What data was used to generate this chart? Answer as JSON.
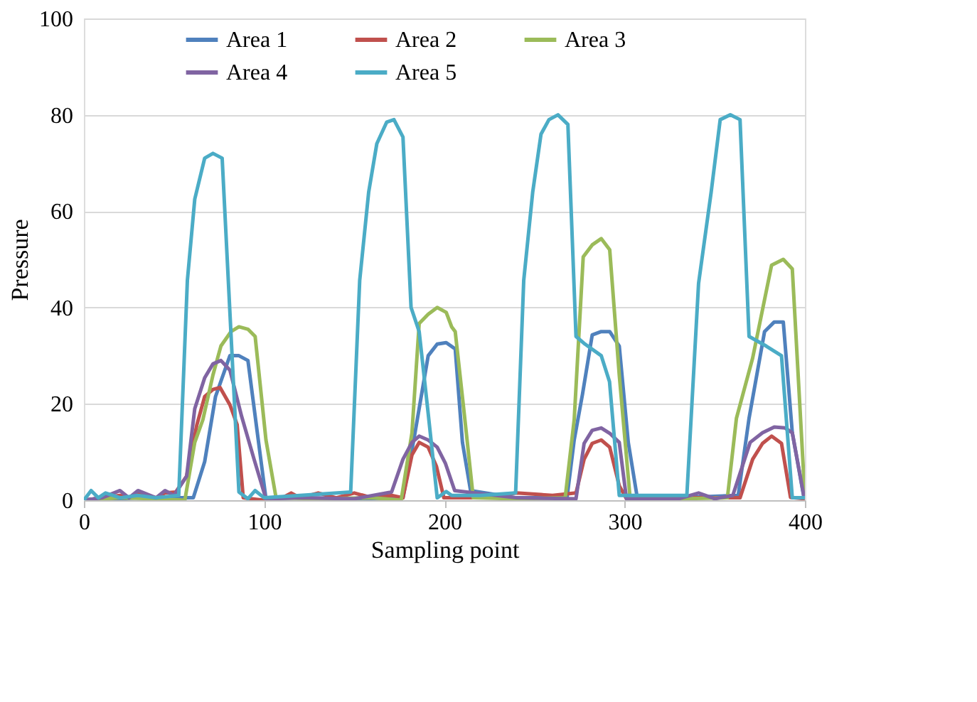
{
  "chart_data": {
    "type": "line",
    "xlabel": "Sampling point",
    "ylabel": "Pressure",
    "xlim": [
      0,
      400
    ],
    "xticks": [
      0,
      100,
      200,
      300,
      400
    ],
    "ylim": [
      0,
      100
    ],
    "yticks": [
      0,
      20,
      40,
      60,
      80,
      100
    ],
    "grid": "y",
    "legend": "top",
    "marker": "none",
    "line_style": "solid",
    "series": [
      {
        "name": "Area 1",
        "color": "#4f81bd",
        "x": [
          0,
          10,
          20,
          30,
          40,
          50,
          60.7,
          67,
          73,
          81,
          86,
          91,
          97.6,
          101,
          120,
          150,
          177,
          183,
          191,
          196,
          201,
          206,
          210,
          214.5,
          240,
          268,
          272,
          276.6,
          282,
          287,
          291.7,
          297,
          302,
          307,
          330,
          363,
          369,
          377.6,
          383,
          388,
          393,
          399.6
        ],
        "values": [
          0,
          0.5,
          0.3,
          0.5,
          0.3,
          0.5,
          0.5,
          8,
          21.5,
          30,
          30,
          29,
          10,
          0.3,
          0.5,
          0.3,
          0.5,
          12.5,
          30,
          32.4,
          32.7,
          31.4,
          12,
          2,
          0.5,
          0.5,
          12.5,
          22,
          34.3,
          35,
          35,
          32,
          12,
          0.5,
          0.5,
          1,
          17,
          35,
          37,
          37,
          14,
          0.3
        ]
      },
      {
        "name": "Area 2",
        "color": "#c0504d",
        "x": [
          0,
          10,
          20,
          25,
          30,
          40,
          45,
          51,
          57,
          62.7,
          67,
          71.6,
          75.5,
          81,
          85,
          88.4,
          100,
          110,
          115,
          120,
          130,
          140,
          150,
          160,
          170.7,
          177,
          182,
          186,
          191,
          195.6,
          199.7,
          220,
          240,
          260,
          273,
          277.5,
          282,
          287,
          291.7,
          297,
          301,
          330,
          364,
          371,
          376.5,
          381.5,
          387,
          392,
          400
        ],
        "values": [
          0,
          0.5,
          1,
          0.5,
          1.5,
          0.5,
          1.5,
          1.7,
          5,
          15.7,
          21.5,
          23,
          23.4,
          19.8,
          15.7,
          0.5,
          0,
          0.5,
          1.5,
          0.5,
          1.5,
          0.5,
          1.5,
          0.5,
          1,
          0.5,
          9.4,
          12,
          11,
          7,
          0.5,
          0.5,
          1.5,
          1,
          1.5,
          8.5,
          11.8,
          12.5,
          11,
          3,
          0.3,
          0.5,
          0.5,
          8.5,
          11.8,
          13.3,
          11.8,
          0.6,
          0.3
        ]
      },
      {
        "name": "Area 3",
        "color": "#9bbb59",
        "x": [
          0,
          20,
          40,
          56,
          61.5,
          66,
          71.6,
          76,
          81.6,
          86,
          91,
          95,
          101,
          106.6,
          130,
          160,
          176,
          182,
          186,
          191,
          196,
          201,
          204,
          206,
          211,
          216,
          240,
          267,
          272,
          277,
          282,
          287,
          291.7,
          297,
          303,
          330,
          357,
          362,
          371,
          381.5,
          388,
          393,
          400
        ],
        "values": [
          0,
          0.5,
          0.3,
          0,
          12,
          16.7,
          26,
          32,
          35,
          36,
          35.5,
          34,
          12.5,
          0.5,
          0.3,
          0.5,
          0,
          14,
          36.7,
          38.6,
          40,
          39,
          36,
          35,
          18,
          0.5,
          0.3,
          0.5,
          16.7,
          50.5,
          53,
          54.3,
          52,
          26,
          0.5,
          0.3,
          0.5,
          17,
          29.5,
          48.8,
          50,
          48,
          0.5
        ]
      },
      {
        "name": "Area 4",
        "color": "#8064a2",
        "x": [
          0,
          10,
          20,
          25,
          30,
          40,
          45,
          50,
          57,
          61.5,
          67,
          71.6,
          76,
          81,
          87.5,
          94.4,
          101,
          120,
          150,
          170.7,
          177,
          182,
          186,
          191,
          196,
          200.5,
          205.7,
          240,
          273,
          277.5,
          282,
          287,
          292,
          297,
          301,
          330,
          341,
          350,
          360,
          369.6,
          376.5,
          383,
          389,
          393,
          399.6
        ],
        "values": [
          0,
          0.5,
          2,
          0.5,
          2,
          0.5,
          2,
          1,
          5,
          19,
          25.4,
          28.3,
          29,
          27,
          17.4,
          8.5,
          0.3,
          0.5,
          0.3,
          1.7,
          8.5,
          12,
          13.3,
          12.5,
          11,
          7.7,
          2,
          0.5,
          0.3,
          11.8,
          14.5,
          15,
          13.8,
          12,
          0.3,
          0.3,
          1.5,
          0.3,
          1,
          12,
          14,
          15.2,
          15,
          14,
          0.5
        ]
      },
      {
        "name": "Area 5",
        "color": "#4bacc6",
        "x": [
          0,
          4,
          8,
          12,
          16,
          20,
          30,
          40,
          52.6,
          57.4,
          61.5,
          67,
          71.6,
          76.7,
          86,
          91,
          95,
          100,
          120,
          148,
          153,
          158,
          162.5,
          168,
          172,
          177,
          181.5,
          186,
          191,
          196,
          201,
          204,
          220,
          239.5,
          244,
          249,
          253.6,
          258,
          263,
          268.5,
          273,
          278,
          287,
          291.6,
          297,
          301,
          320,
          334.5,
          341,
          348,
          353,
          358.6,
          364,
          369,
          378.5,
          387,
          393,
          400
        ],
        "values": [
          0,
          2,
          0.5,
          1.5,
          1,
          0.5,
          1,
          0.5,
          1,
          45.6,
          62.5,
          71,
          72,
          71,
          1.7,
          0.3,
          2,
          0.5,
          1,
          1.7,
          45.6,
          64,
          74,
          78.5,
          79,
          75.4,
          40,
          35,
          18,
          0.5,
          1.8,
          1,
          1,
          1.5,
          45.6,
          64,
          76,
          79,
          80,
          78,
          34,
          32.4,
          30,
          24.6,
          1,
          1,
          1,
          1,
          45,
          64,
          79,
          80,
          79,
          34,
          32,
          30,
          0.5,
          0.5
        ]
      }
    ]
  }
}
